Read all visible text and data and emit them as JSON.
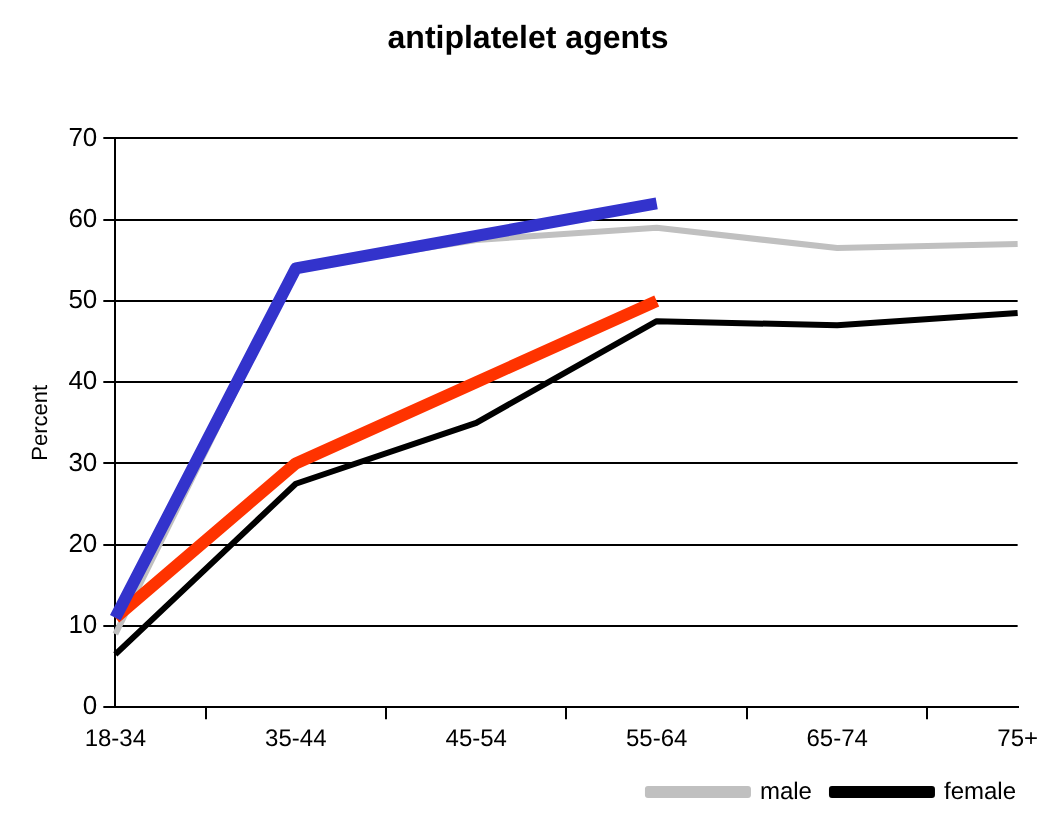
{
  "chart_data": {
    "type": "line",
    "title": "antiplatelet agents",
    "ylabel": "Percent",
    "categories": [
      "18-34",
      "35-44",
      "45-54",
      "55-64",
      "65-74",
      "75+"
    ],
    "series": [
      {
        "name": "male",
        "color": "#c0c0c0",
        "values": [
          9,
          54,
          57.5,
          59,
          56.5,
          57
        ]
      },
      {
        "name": "female",
        "color": "#000000",
        "values": [
          6.5,
          27.5,
          35,
          47.5,
          47,
          48.5
        ]
      },
      {
        "color": "#3333cc",
        "values": [
          11,
          54,
          58,
          62,
          null,
          null
        ]
      },
      {
        "color": "#ff3300",
        "values": [
          11,
          30,
          40,
          50,
          null,
          null
        ]
      }
    ],
    "ylim": [
      0,
      70
    ],
    "yticks": [
      0,
      10,
      20,
      30,
      40,
      50,
      60,
      70
    ],
    "grid": "y",
    "legend": "bottom right",
    "marker": "none"
  }
}
